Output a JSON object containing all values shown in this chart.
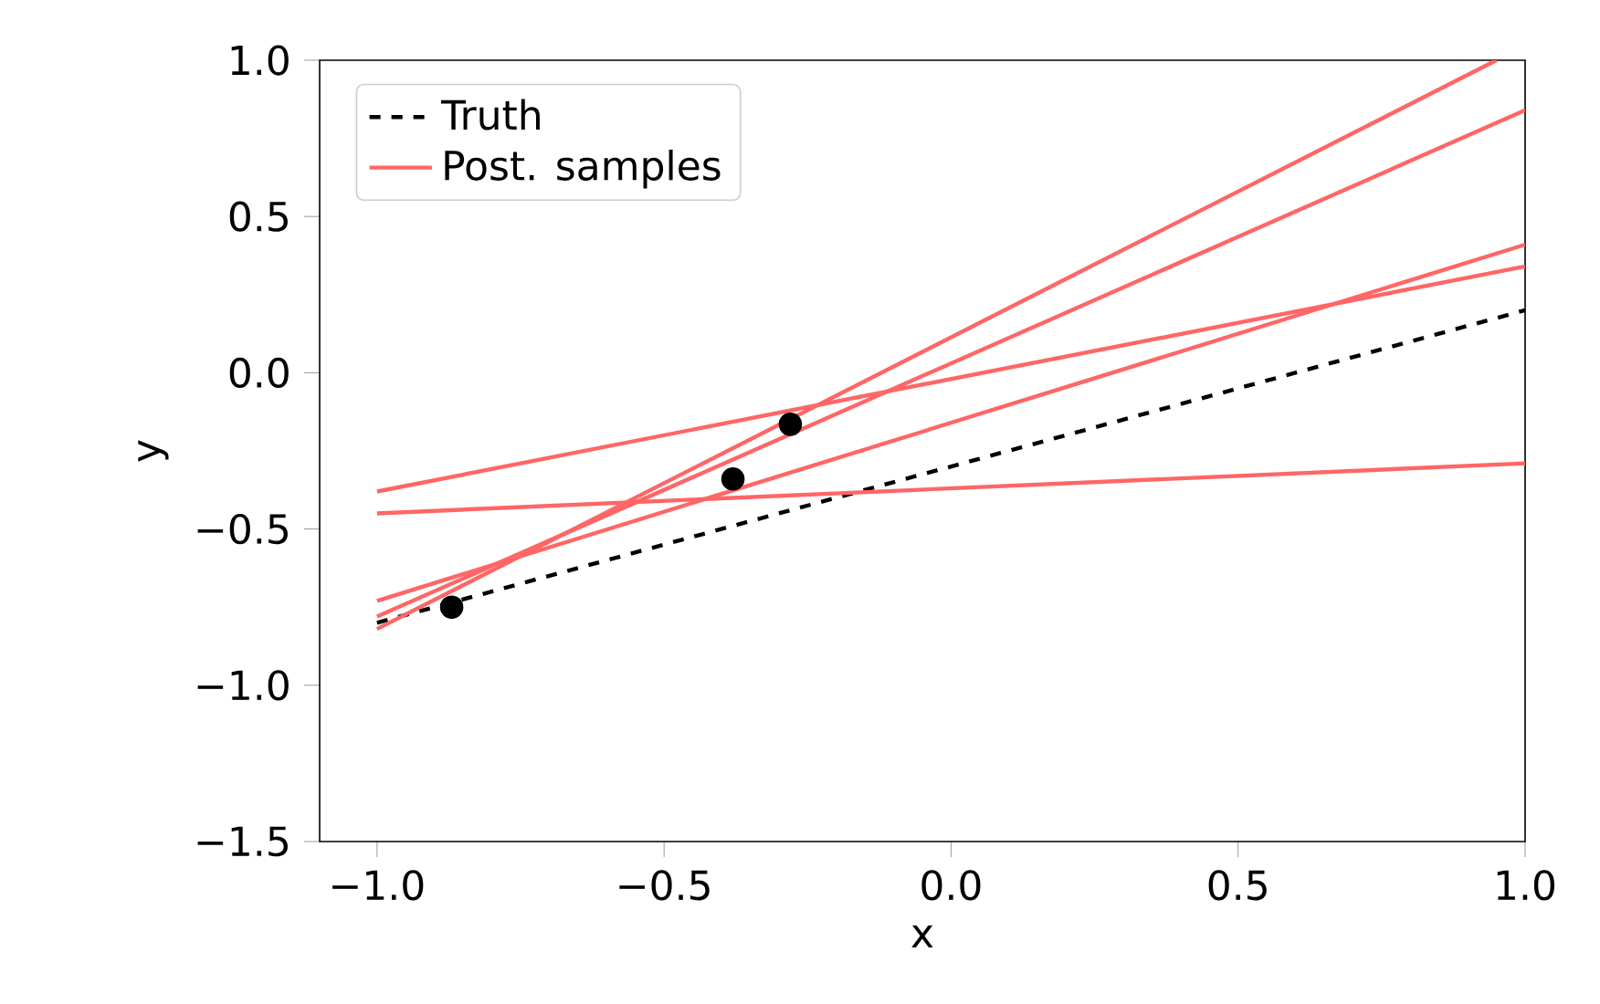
{
  "chart_data": {
    "type": "line",
    "xlabel": "x",
    "ylabel": "y",
    "xlim": [
      -1.1,
      1.0
    ],
    "ylim": [
      -1.5,
      1.0
    ],
    "xticks": [
      {
        "value": -1.0,
        "label": "−1.0"
      },
      {
        "value": -0.5,
        "label": "−0.5"
      },
      {
        "value": 0.0,
        "label": "0.0"
      },
      {
        "value": 0.5,
        "label": "0.5"
      },
      {
        "value": 1.0,
        "label": "1.0"
      }
    ],
    "yticks": [
      {
        "value": -1.5,
        "label": "−1.5"
      },
      {
        "value": -1.0,
        "label": "−1.0"
      },
      {
        "value": -0.5,
        "label": "−0.5"
      },
      {
        "value": 0.0,
        "label": "0.0"
      },
      {
        "value": 0.5,
        "label": "0.5"
      },
      {
        "value": 1.0,
        "label": "1.0"
      }
    ],
    "legend": "top left",
    "series": [
      {
        "name": "Truth",
        "color": "#000000",
        "line_style": "dashed",
        "x": [
          -1.0,
          1.0
        ],
        "values": [
          -0.8,
          0.2
        ]
      },
      {
        "name": "Post. samples",
        "color": "#ff6666",
        "line_style": "solid",
        "x": [
          -1.0,
          0.95
        ],
        "values": [
          -0.82,
          1.0
        ]
      },
      {
        "color": "#ff6666",
        "line_style": "solid",
        "x": [
          -1.0,
          1.0
        ],
        "values": [
          -0.78,
          0.84
        ]
      },
      {
        "color": "#ff6666",
        "line_style": "solid",
        "x": [
          -1.0,
          1.0
        ],
        "values": [
          -0.73,
          0.41
        ]
      },
      {
        "color": "#ff6666",
        "line_style": "solid",
        "x": [
          -1.0,
          1.0
        ],
        "values": [
          -0.38,
          0.34
        ]
      },
      {
        "color": "#ff6666",
        "line_style": "solid",
        "x": [
          -1.0,
          1.0
        ],
        "values": [
          -0.45,
          -0.29
        ]
      },
      {
        "type": "scatter",
        "color": "#000000",
        "marker": "circle",
        "x": [
          -0.87,
          -0.38,
          -0.28
        ],
        "values": [
          -0.75,
          -0.34,
          -0.165
        ]
      }
    ]
  }
}
